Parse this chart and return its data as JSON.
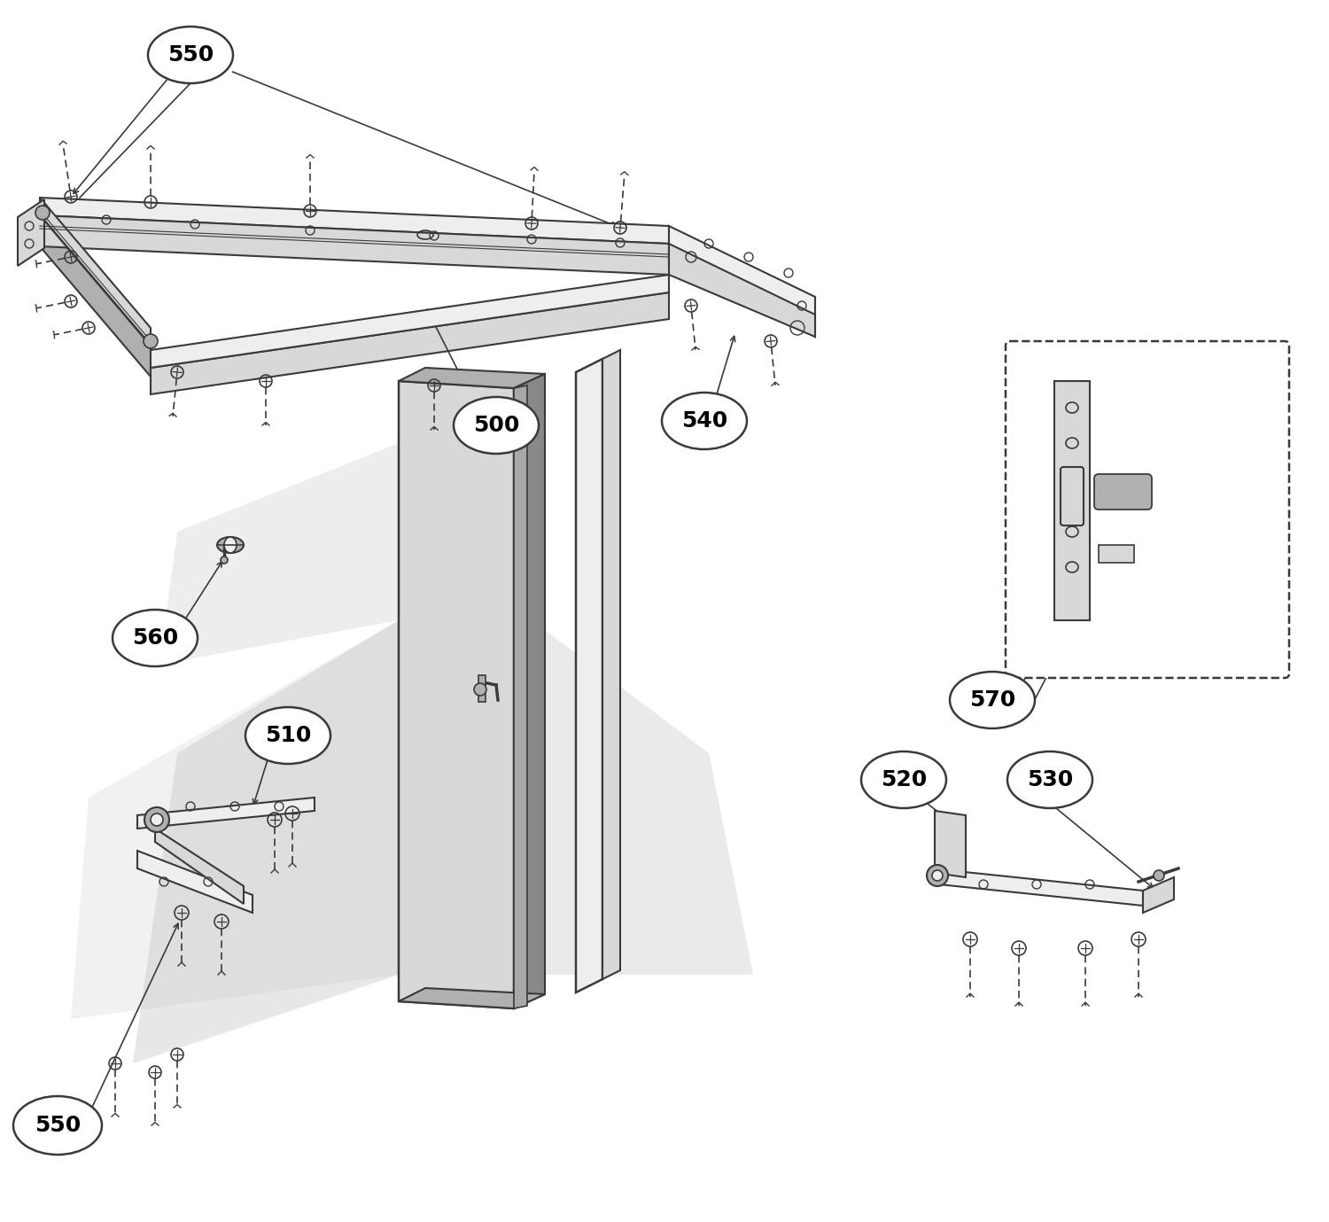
{
  "bg_color": "#ffffff",
  "lc": "#3a3a3a",
  "lg": "#d8d8d8",
  "mg": "#b0b0b0",
  "dg": "#888888",
  "vlg": "#eeeeee",
  "shadow_color": "#cccccc"
}
